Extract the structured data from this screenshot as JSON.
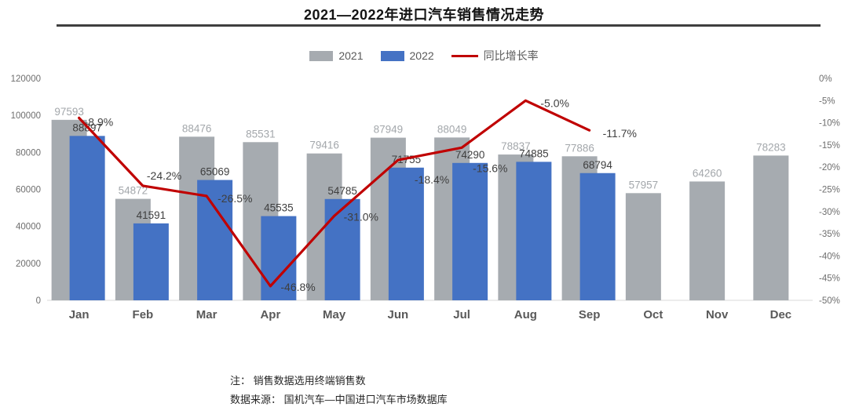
{
  "page": {
    "title": "2021—2022年进口汽车销售情况走势"
  },
  "legend": {
    "items": [
      {
        "label": "2021",
        "swatch": "#a6abb0",
        "kind": "bar"
      },
      {
        "label": "2022",
        "swatch": "#4472c4",
        "kind": "bar"
      },
      {
        "label": "同比增长率",
        "swatch": "#c00000",
        "kind": "line"
      }
    ]
  },
  "footnotes": {
    "line1": "注： 销售数据选用终端销售数",
    "line2": "数据来源： 国机汽车—中国进口汽车市场数据库"
  },
  "colors": {
    "bar2021": "#a6abb0",
    "bar2022": "#4472c4",
    "growthLine": "#c00000",
    "label2021": "#a3a7ab",
    "labelDark": "#3f3f3f",
    "axisText": "#6e6e6e",
    "monthText": "#595959",
    "baseline": "#d9d9d9",
    "titleRule": "#3f3f3f"
  },
  "chart_data": {
    "type": "bar",
    "subtype": "combo-bar-line",
    "title": "2021—2022年进口汽车销售情况走势",
    "xlabel": "",
    "ylabel": "",
    "categories": [
      "Jan",
      "Feb",
      "Mar",
      "Apr",
      "May",
      "Jun",
      "Jul",
      "Aug",
      "Sep",
      "Oct",
      "Nov",
      "Dec"
    ],
    "series": [
      {
        "name": "2021",
        "type": "bar",
        "axis": "left",
        "values": [
          97593,
          54872,
          88476,
          85531,
          79416,
          87949,
          88049,
          78837,
          77886,
          57957,
          64260,
          78283
        ]
      },
      {
        "name": "2022",
        "type": "bar",
        "axis": "left",
        "values": [
          88897,
          41591,
          65069,
          45535,
          54785,
          71755,
          74290,
          74885,
          68794,
          null,
          null,
          null
        ]
      },
      {
        "name": "同比增长率",
        "type": "line",
        "axis": "right",
        "values": [
          -8.9,
          -24.2,
          -26.5,
          -46.8,
          -31.0,
          -18.4,
          -15.6,
          -5.0,
          -11.7,
          null,
          null,
          null
        ],
        "labels": [
          "-8.9%",
          "-24.2%",
          "-26.5%",
          "-46.8%",
          "-31.0%",
          "-18.4%",
          "-15.6%",
          "-5.0%",
          "-11.7%",
          null,
          null,
          null
        ]
      }
    ],
    "left_axis": {
      "min": 0,
      "max": 120000,
      "step": 20000,
      "tick_labels": [
        "0",
        "20000",
        "40000",
        "60000",
        "80000",
        "100000",
        "120000"
      ]
    },
    "right_axis": {
      "min": -50,
      "max": 0,
      "step": 5,
      "format": "percent",
      "tick_labels": [
        "0%",
        "-5%",
        "-10%",
        "-15%",
        "-20%",
        "-25%",
        "-30%",
        "-35%",
        "-40%",
        "-45%",
        "-50%"
      ]
    },
    "grid": false,
    "legend_position": "top"
  }
}
